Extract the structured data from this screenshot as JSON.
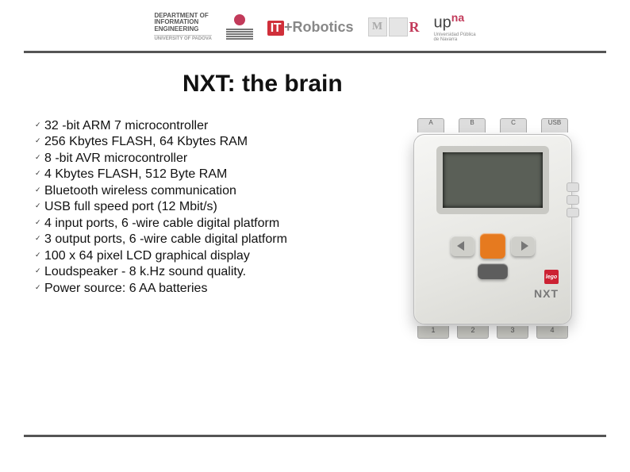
{
  "header": {
    "dei": {
      "line1": "DEPARTMENT OF",
      "line2": "INFORMATION",
      "line3": "ENGINEERING",
      "sub": "UNIVERSITY OF PADOVA"
    },
    "itrobotics": {
      "prefix": "IT",
      "plus": "+",
      "word": "Robotics"
    },
    "mrr": {
      "m": "M",
      "r": "R"
    },
    "upna": {
      "up": "up",
      "na": "na",
      "sub1": "Universidad Pública",
      "sub2": "de Navarra"
    }
  },
  "title": "NXT: the brain",
  "bullets": [
    "32 -bit ARM 7 microcontroller",
    "256 Kbytes FLASH, 64 Kbytes RAM",
    "8 -bit AVR microcontroller",
    "4 Kbytes FLASH, 512 Byte RAM",
    "Bluetooth wireless communication",
    "USB full speed port (12 Mbit/s)",
    "4 input ports, 6 -wire cable digital platform",
    "3 output ports, 6 -wire cable digital platform",
    "100 x 64 pixel LCD graphical display",
    "Loudspeaker - 8 k.Hz sound quality.",
    "Power source: 6 AA batteries"
  ],
  "device": {
    "top_ports": [
      "A",
      "B",
      "C",
      "USB"
    ],
    "bottom_ports": [
      "1",
      "2",
      "3",
      "4"
    ],
    "brand": "NXT",
    "lego": "lego"
  },
  "colors": {
    "accent_red": "#c23a5a",
    "it_red": "#d02f3a",
    "orange_btn": "#e67a1f",
    "rule": "#555555",
    "text": "#111111"
  }
}
